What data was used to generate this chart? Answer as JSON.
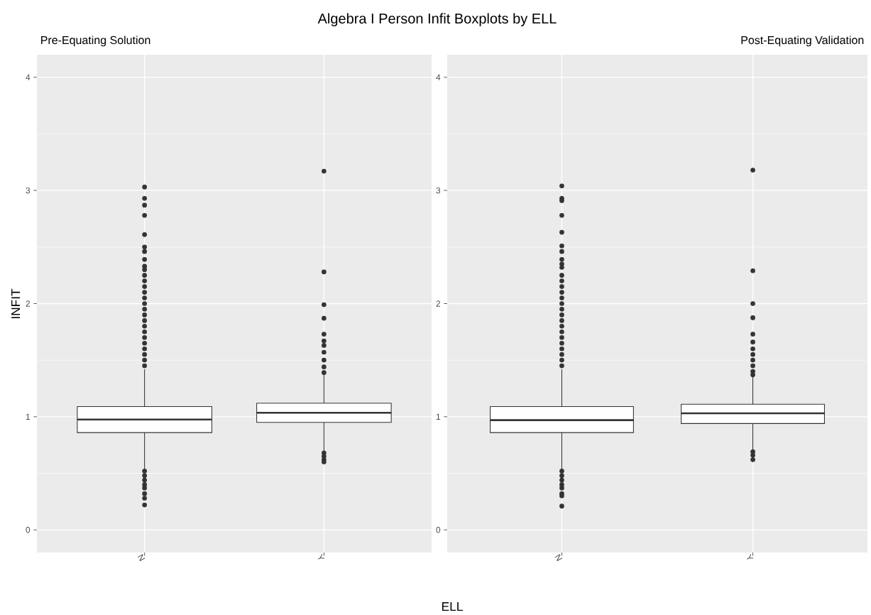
{
  "chart_data": [
    {
      "type": "box",
      "title": "Algebra I Person Infit Boxplots by ELL",
      "subtitle": "Pre-Equating Solution",
      "xlabel": "ELL",
      "ylabel": "INFIT",
      "categories": [
        "N",
        "Y"
      ],
      "boxes": [
        {
          "low": 0.53,
          "q1": 0.86,
          "median": 0.975,
          "q3": 1.09,
          "high": 1.42,
          "outliers": [
            3.03,
            2.93,
            2.87,
            2.78,
            2.61,
            2.5,
            2.46,
            2.39,
            2.33,
            2.3,
            2.25,
            2.2,
            2.15,
            2.1,
            2.05,
            2.0,
            1.95,
            1.9,
            1.85,
            1.8,
            1.75,
            1.7,
            1.65,
            1.6,
            1.55,
            1.5,
            1.45,
            0.52,
            0.48,
            0.44,
            0.4,
            0.37,
            0.32,
            0.28,
            0.22
          ]
        },
        {
          "low": 0.69,
          "q1": 0.95,
          "median": 1.035,
          "q3": 1.12,
          "high": 1.37,
          "outliers": [
            3.17,
            2.28,
            1.99,
            1.87,
            1.73,
            1.67,
            1.63,
            1.57,
            1.5,
            1.44,
            1.39,
            0.68,
            0.65,
            0.62,
            0.6
          ]
        }
      ],
      "ylim": [
        -0.2,
        4.2
      ],
      "yticks": [
        0,
        1,
        2,
        3,
        4
      ],
      "grid": true
    },
    {
      "type": "box",
      "subtitle": "Post-Equating Validation",
      "categories": [
        "N",
        "Y"
      ],
      "boxes": [
        {
          "low": 0.52,
          "q1": 0.86,
          "median": 0.97,
          "q3": 1.09,
          "high": 1.42,
          "outliers": [
            3.04,
            2.93,
            2.91,
            2.78,
            2.63,
            2.51,
            2.46,
            2.39,
            2.35,
            2.32,
            2.25,
            2.2,
            2.15,
            2.1,
            2.05,
            2.0,
            1.95,
            1.9,
            1.85,
            1.8,
            1.75,
            1.7,
            1.65,
            1.6,
            1.55,
            1.5,
            1.45,
            0.52,
            0.48,
            0.44,
            0.4,
            0.37,
            0.32,
            0.3,
            0.21
          ]
        },
        {
          "low": 0.7,
          "q1": 0.94,
          "median": 1.03,
          "q3": 1.11,
          "high": 1.36,
          "outliers": [
            3.18,
            2.29,
            2.0,
            1.875,
            1.73,
            1.66,
            1.6,
            1.55,
            1.5,
            1.45,
            1.4,
            1.37,
            0.69,
            0.66,
            0.62
          ]
        }
      ],
      "ylim": [
        -0.2,
        4.2
      ],
      "yticks": [
        0,
        1,
        2,
        3,
        4
      ],
      "grid": true
    }
  ]
}
